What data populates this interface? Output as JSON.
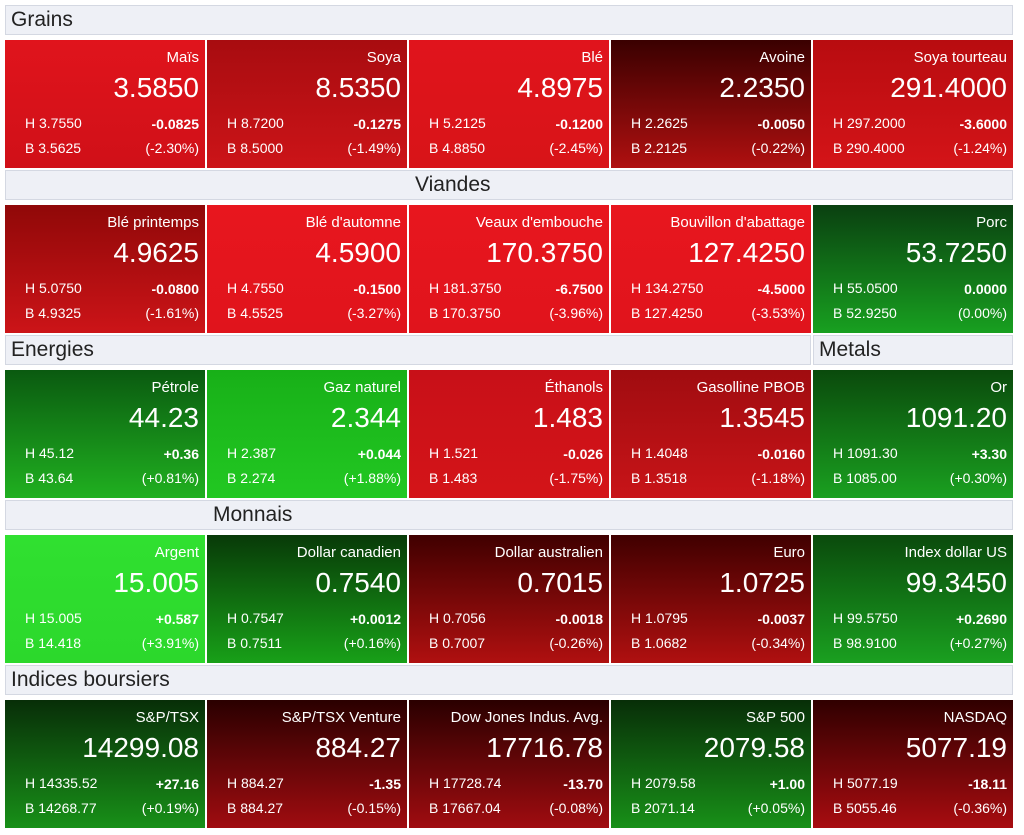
{
  "rows": [
    {
      "headers": [
        "Grains"
      ],
      "tiles": [
        {
          "name": "Maïs",
          "last": "3.5850",
          "high": "H 3.7550",
          "change": "-0.0825",
          "low": "B 3.5625",
          "percent": "(-2.30%)",
          "gradient": [
            "#e0141c",
            "#d01018"
          ]
        },
        {
          "name": "Soya",
          "last": "8.5350",
          "high": "H 8.7200",
          "change": "-0.1275",
          "low": "B 8.5000",
          "percent": "(-1.49%)",
          "gradient": [
            "#a80c10",
            "#cc1418"
          ]
        },
        {
          "name": "Blé",
          "last": "4.8975",
          "high": "H 5.2125",
          "change": "-0.1200",
          "low": "B 4.8850",
          "percent": "(-2.45%)",
          "gradient": [
            "#e0141c",
            "#d81418"
          ]
        },
        {
          "name": "Avoine",
          "last": "2.2350",
          "high": "H 2.2625",
          "change": "-0.0050",
          "low": "B 2.2125",
          "percent": "(-0.22%)",
          "gradient": [
            "#3a0000",
            "#b01010"
          ]
        },
        {
          "name": "Soya tourteau",
          "last": "291.4000",
          "high": "H 297.2000",
          "change": "-3.6000",
          "low": "B 290.4000",
          "percent": "(-1.24%)",
          "gradient": [
            "#b80c10",
            "#d41418"
          ]
        }
      ]
    },
    {
      "headers": [
        "Viandes"
      ],
      "tiles": [
        {
          "name": "Blé printemps",
          "last": "4.9625",
          "high": "H 5.0750",
          "change": "-0.0800",
          "low": "B 4.9325",
          "percent": "(-1.61%)",
          "gradient": [
            "#900808",
            "#cc1418"
          ]
        },
        {
          "name": "Blé d'automne",
          "last": "4.5900",
          "high": "H 4.7550",
          "change": "-0.1500",
          "low": "B 4.5525",
          "percent": "(-3.27%)",
          "gradient": [
            "#e8161e",
            "#e0141c"
          ]
        },
        {
          "name": "Veaux d'embouche",
          "last": "170.3750",
          "high": "H 181.3750",
          "change": "-6.7500",
          "low": "B 170.3750",
          "percent": "(-3.96%)",
          "gradient": [
            "#e8161e",
            "#e0141c"
          ]
        },
        {
          "name": "Bouvillon d'abattage",
          "last": "127.4250",
          "high": "H 134.2750",
          "change": "-4.5000",
          "low": "B 127.4250",
          "percent": "(-3.53%)",
          "gradient": [
            "#e8161e",
            "#e0141c"
          ]
        },
        {
          "name": "Porc",
          "last": "53.7250",
          "high": "H 55.0500",
          "change": "0.0000",
          "low": "B 52.9250",
          "percent": "(0.00%)",
          "gradient": [
            "#0a4010",
            "#18a020"
          ]
        }
      ]
    },
    {
      "headers": [
        "Energies",
        "Metals"
      ],
      "tiles": [
        {
          "name": "Pétrole",
          "last": "44.23",
          "high": "H 45.12",
          "change": "+0.36",
          "low": "B 43.64",
          "percent": "(+0.81%)",
          "gradient": [
            "#0a5a10",
            "#20b020"
          ]
        },
        {
          "name": "Gaz naturel",
          "last": "2.344",
          "high": "H 2.387",
          "change": "+0.044",
          "low": "B 2.274",
          "percent": "(+1.88%)",
          "gradient": [
            "#18b018",
            "#22c822"
          ]
        },
        {
          "name": "Éthanols",
          "last": "1.483",
          "high": "H 1.521",
          "change": "-0.026",
          "low": "B 1.483",
          "percent": "(-1.75%)",
          "gradient": [
            "#c81018",
            "#d41418"
          ]
        },
        {
          "name": "Gasolline PBOB",
          "last": "1.3545",
          "high": "H 1.4048",
          "change": "-0.0160",
          "low": "B 1.3518",
          "percent": "(-1.18%)",
          "gradient": [
            "#a00c10",
            "#c81418"
          ]
        },
        {
          "name": "Or",
          "last": "1091.20",
          "high": "H 1091.30",
          "change": "+3.30",
          "low": "B 1085.00",
          "percent": "(+0.30%)",
          "gradient": [
            "#0a4a0c",
            "#1aa020"
          ]
        }
      ]
    },
    {
      "headers": [
        "Monnais"
      ],
      "tiles": [
        {
          "name": "Argent",
          "last": "15.005",
          "high": "H 15.005",
          "change": "+0.587",
          "low": "B 14.418",
          "percent": "(+3.91%)",
          "gradient": [
            "#30e030",
            "#2cd82c"
          ]
        },
        {
          "name": "Dollar canadien",
          "last": "0.7540",
          "high": "H 0.7547",
          "change": "+0.0012",
          "low": "B 0.7511",
          "percent": "(+0.16%)",
          "gradient": [
            "#083a08",
            "#18a018"
          ]
        },
        {
          "name": "Dollar australien",
          "last": "0.7015",
          "high": "H 0.7056",
          "change": "-0.0018",
          "low": "B 0.7007",
          "percent": "(-0.26%)",
          "gradient": [
            "#400000",
            "#b01010"
          ]
        },
        {
          "name": "Euro",
          "last": "1.0725",
          "high": "H 1.0795",
          "change": "-0.0037",
          "low": "B 1.0682",
          "percent": "(-0.34%)",
          "gradient": [
            "#400000",
            "#b01010"
          ]
        },
        {
          "name": "Index dollar US",
          "last": "99.3450",
          "high": "H 99.5750",
          "change": "+0.2690",
          "low": "B 98.9100",
          "percent": "(+0.27%)",
          "gradient": [
            "#0a4a0c",
            "#1aa020"
          ]
        }
      ]
    },
    {
      "headers": [
        "Indices boursiers"
      ],
      "tiles": [
        {
          "name": "S&P/TSX",
          "last": "14299.08",
          "high": "H 14335.52",
          "change": "+27.16",
          "low": "B 14268.77",
          "percent": "(+0.19%)",
          "gradient": [
            "#082e08",
            "#189018"
          ]
        },
        {
          "name": "S&P/TSX Venture",
          "last": "884.27",
          "high": "H 884.27",
          "change": "-1.35",
          "low": "B 884.27",
          "percent": "(-0.15%)",
          "gradient": [
            "#2a0000",
            "#a00c10"
          ]
        },
        {
          "name": "Dow Jones Indus. Avg.",
          "last": "17716.78",
          "high": "H 17728.74",
          "change": "-13.70",
          "low": "B 17667.04",
          "percent": "(-0.08%)",
          "gradient": [
            "#2a0000",
            "#a00c10"
          ]
        },
        {
          "name": "S&P 500",
          "last": "2079.58",
          "high": "H 2079.58",
          "change": "+1.00",
          "low": "B 2071.14",
          "percent": "(+0.05%)",
          "gradient": [
            "#082e08",
            "#189018"
          ]
        },
        {
          "name": "NASDAQ",
          "last": "5077.19",
          "high": "H 5077.19",
          "change": "-18.11",
          "low": "B 5055.46",
          "percent": "(-0.36%)",
          "gradient": [
            "#300000",
            "#a80c10"
          ]
        }
      ]
    }
  ]
}
